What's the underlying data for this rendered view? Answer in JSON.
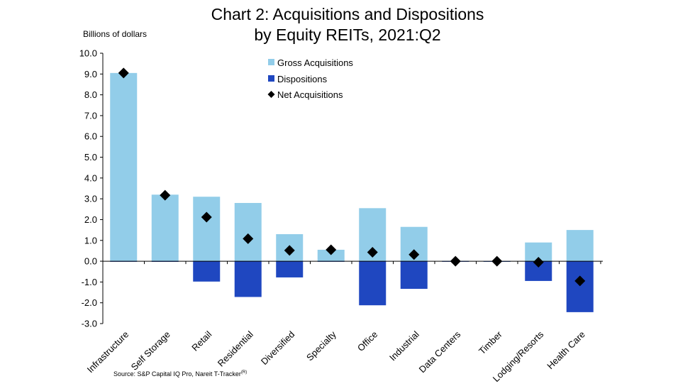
{
  "chart_data": {
    "type": "bar",
    "title_line1": "Chart 2: Acquisitions and Dispositions",
    "title_line2": "by Equity REITs, 2021:Q2",
    "ylabel": "Billions of dollars",
    "xlabel": "",
    "ylim": [
      -3.0,
      10.0
    ],
    "yticks": [
      "10.0",
      "9.0",
      "8.0",
      "7.0",
      "6.0",
      "5.0",
      "4.0",
      "3.0",
      "2.0",
      "1.0",
      "0.0",
      "-1.0",
      "-2.0",
      "-3.0"
    ],
    "categories": [
      "Infrastructure",
      "Self Storage",
      "Retail",
      "Residential",
      "Diversified",
      "Specialty",
      "Office",
      "Industrial",
      "Data Centers",
      "Timber",
      "Lodging/Resorts",
      "Health Care"
    ],
    "series": [
      {
        "name": "Gross Acquisitions",
        "kind": "bar",
        "color": "#92cde9",
        "values": [
          9.05,
          3.2,
          3.1,
          2.8,
          1.3,
          0.55,
          2.55,
          1.65,
          0.02,
          0.0,
          0.9,
          1.5
        ]
      },
      {
        "name": "Dispositions",
        "kind": "bar",
        "color": "#1f47c0",
        "values": [
          0.0,
          -0.03,
          -0.98,
          -1.72,
          -0.78,
          0.0,
          -2.12,
          -1.33,
          -0.02,
          0.0,
          -0.95,
          -2.45
        ]
      },
      {
        "name": "Net Acquisitions",
        "kind": "marker",
        "color": "#000000",
        "values": [
          9.05,
          3.17,
          2.12,
          1.08,
          0.52,
          0.55,
          0.43,
          0.32,
          0.0,
          0.0,
          -0.05,
          -0.95
        ]
      }
    ],
    "legend_position": "top-center",
    "grid": false
  },
  "source_text": "Source: S&P Capital IQ Pro, Nareit T-Tracker",
  "source_superscript": "(R)"
}
